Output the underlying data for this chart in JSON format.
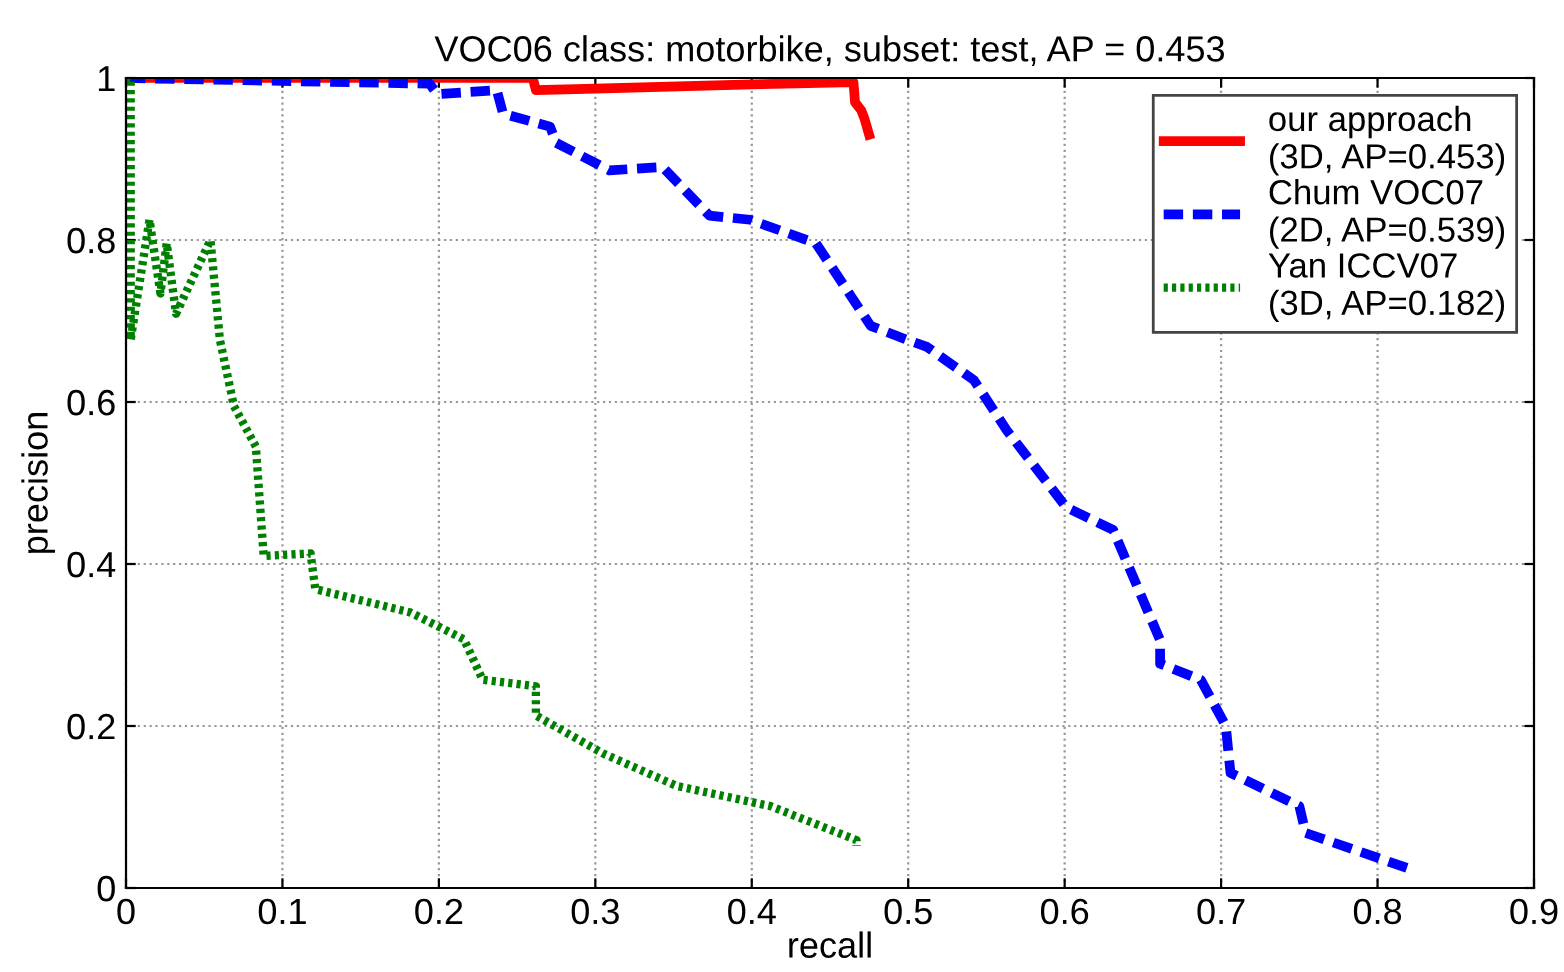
{
  "chart_data": {
    "type": "line",
    "title": "VOC06 class: motorbike, subset: test, AP = 0.453",
    "xlabel": "recall",
    "ylabel": "precision",
    "xlim": [
      0,
      0.9
    ],
    "ylim": [
      0,
      1
    ],
    "xticks": [
      0,
      0.1,
      0.2,
      0.3,
      0.4,
      0.5,
      0.6,
      0.7,
      0.8,
      0.9
    ],
    "yticks": [
      0,
      0.2,
      0.4,
      0.6,
      0.8,
      1
    ],
    "grid": true,
    "legend": "top right",
    "series": [
      {
        "name": "our approach\n(3D, AP=0.453)",
        "color": "#ff0000",
        "line_style": "solid",
        "x": [
          0,
          0.26,
          0.262,
          0.3,
          0.4,
          0.465,
          0.466,
          0.47,
          0.472,
          0.475
        ],
        "values": [
          1,
          1,
          0.985,
          0.987,
          0.992,
          0.995,
          0.97,
          0.96,
          0.95,
          0.93
        ]
      },
      {
        "name": "Chum VOC07\n(2D, AP=0.539)",
        "color": "#0000ff",
        "line_style": "dashed",
        "x": [
          0,
          0.194,
          0.199,
          0.237,
          0.241,
          0.271,
          0.275,
          0.309,
          0.343,
          0.373,
          0.399,
          0.441,
          0.476,
          0.499,
          0.512,
          0.542,
          0.563,
          0.601,
          0.631,
          0.661,
          0.661,
          0.687,
          0.703,
          0.706,
          0.75,
          0.754,
          0.823
        ],
        "values": [
          1,
          0.993,
          0.98,
          0.985,
          0.956,
          0.94,
          0.92,
          0.886,
          0.89,
          0.83,
          0.825,
          0.796,
          0.694,
          0.677,
          0.668,
          0.627,
          0.565,
          0.47,
          0.442,
          0.306,
          0.277,
          0.257,
          0.2,
          0.142,
          0.101,
          0.068,
          0.022
        ]
      },
      {
        "name": "Yan ICCV07\n(3D, AP=0.182)",
        "color": "#008000",
        "line_style": "dotted",
        "x": [
          0,
          0.003,
          0.003,
          0.015,
          0.022,
          0.026,
          0.032,
          0.054,
          0.06,
          0.069,
          0.083,
          0.088,
          0.118,
          0.121,
          0.182,
          0.216,
          0.228,
          0.262,
          0.262,
          0.305,
          0.352,
          0.412,
          0.467,
          0.467
        ],
        "values": [
          1,
          1,
          0.677,
          0.825,
          0.734,
          0.796,
          0.709,
          0.8,
          0.677,
          0.595,
          0.545,
          0.41,
          0.413,
          0.369,
          0.34,
          0.307,
          0.257,
          0.249,
          0.213,
          0.166,
          0.126,
          0.101,
          0.059,
          0.052
        ]
      }
    ]
  }
}
